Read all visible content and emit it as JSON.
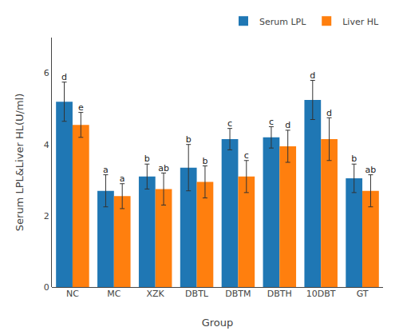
{
  "chart_data": {
    "type": "bar",
    "categories": [
      "NC",
      "MC",
      "XZK",
      "DBTL",
      "DBTM",
      "DBTH",
      "10DBT",
      "GT"
    ],
    "series": [
      {
        "name": "Serum LPL",
        "values": [
          5.2,
          2.7,
          3.1,
          3.35,
          4.15,
          4.2,
          5.25,
          3.05
        ],
        "errors": [
          0.55,
          0.45,
          0.35,
          0.65,
          0.3,
          0.3,
          0.55,
          0.4
        ],
        "annotations": [
          "d",
          "a",
          "b",
          "b",
          "c",
          "c",
          "d",
          "b"
        ]
      },
      {
        "name": "Liver HL",
        "values": [
          4.55,
          2.55,
          2.75,
          2.95,
          3.1,
          3.95,
          4.15,
          2.7
        ],
        "errors": [
          0.35,
          0.35,
          0.45,
          0.45,
          0.45,
          0.45,
          0.6,
          0.45
        ],
        "annotations": [
          "e",
          "a",
          "ab",
          "b",
          "c",
          "d",
          "d",
          "ab"
        ]
      }
    ],
    "xlabel": "Group",
    "ylabel": "Serum LPL&Liver HL(U/ml)",
    "ylim": [
      0,
      7
    ],
    "yticks": [
      0,
      2,
      4,
      6
    ],
    "grid": false,
    "legend": "upper right"
  }
}
